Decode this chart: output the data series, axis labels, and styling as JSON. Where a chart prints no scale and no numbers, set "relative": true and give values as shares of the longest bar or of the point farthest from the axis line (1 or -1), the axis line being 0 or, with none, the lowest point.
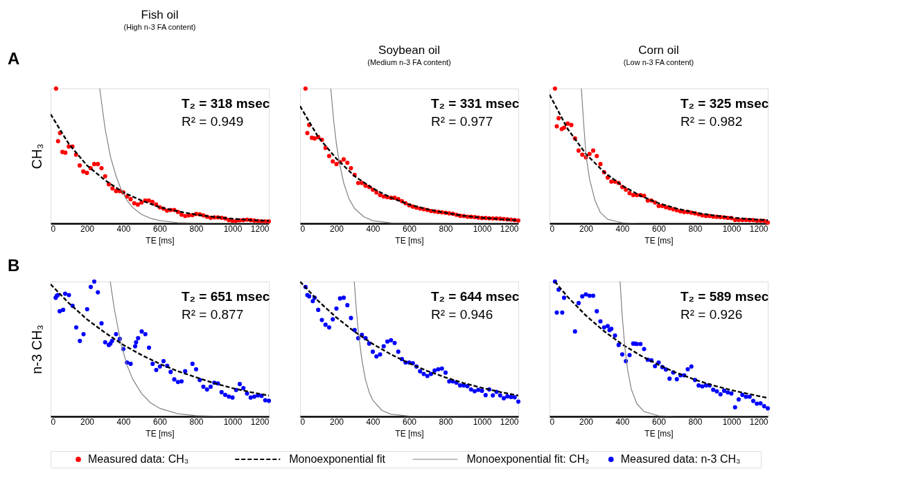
{
  "chart_data": [
    {
      "type": "scatter",
      "title": "Fish oil",
      "subtitle": "(High n-3 FA content)",
      "ylabel": "CH₃",
      "xlabel": "TE [ms]",
      "relative": true,
      "tick_labels": "x",
      "legend": "bottom",
      "xlim": [
        0,
        1200
      ],
      "xticks": [
        0,
        200,
        400,
        600,
        800,
        1000,
        1200
      ],
      "annotations": [
        "T₂ = 318 msec",
        "R² = 0.949",
        "A"
      ],
      "series": [
        {
          "name": "Measured data: CH₃",
          "color": "#ff0000",
          "marker": "circle",
          "x": [
            30,
            41,
            52,
            65,
            81,
            100,
            120,
            140,
            160,
            180,
            200,
            220,
            240,
            260,
            280,
            300,
            320,
            340,
            360,
            380,
            400,
            420,
            440,
            460,
            480,
            500,
            520,
            540,
            560,
            580,
            600,
            620,
            640,
            660,
            680,
            700,
            720,
            740,
            760,
            780,
            800,
            820,
            840,
            860,
            880,
            900,
            920,
            940,
            960,
            980,
            1000,
            1020,
            1040,
            1060,
            1080,
            1100,
            1120,
            1140,
            1160,
            1180,
            1200
          ],
          "values": [
            1.0,
            0.61,
            0.67,
            0.53,
            0.525,
            0.57,
            0.57,
            0.51,
            0.43,
            0.385,
            0.375,
            0.41,
            0.44,
            0.44,
            0.41,
            0.35,
            0.29,
            0.26,
            0.24,
            0.24,
            0.23,
            0.2,
            0.18,
            0.15,
            0.14,
            0.155,
            0.17,
            0.17,
            0.16,
            0.14,
            0.12,
            0.11,
            0.095,
            0.1,
            0.1,
            0.085,
            0.065,
            0.055,
            0.06,
            0.062,
            0.07,
            0.068,
            0.06,
            0.05,
            0.042,
            0.045,
            0.045,
            0.042,
            0.037,
            0.025,
            0.018,
            0.018,
            0.023,
            0.025,
            0.028,
            0.025,
            0.021,
            0.018,
            0.015,
            0.015,
            0.015
          ]
        },
        {
          "name": "Monoexponential fit",
          "type": "line",
          "line_style": "dashed",
          "color": "#000000",
          "x": [
            0,
            100,
            200,
            300,
            400,
            500,
            600,
            700,
            800,
            900,
            1000,
            1100,
            1200
          ],
          "values": [
            0.81,
            0.59,
            0.43,
            0.32,
            0.23,
            0.17,
            0.12,
            0.09,
            0.065,
            0.048,
            0.035,
            0.025,
            0.019
          ]
        },
        {
          "name": "Monoexponential fit: CH₂",
          "type": "line",
          "line_style": "solid",
          "color": "#808080",
          "x": [
            270,
            300,
            330,
            360,
            390,
            420,
            450,
            500,
            550,
            600,
            700,
            800,
            1200
          ],
          "values": [
            1.0,
            0.7,
            0.49,
            0.35,
            0.245,
            0.17,
            0.12,
            0.067,
            0.038,
            0.021,
            0.006,
            0.002,
            0
          ]
        }
      ]
    },
    {
      "type": "scatter",
      "title": "Soybean oil",
      "subtitle": "(Medium n-3 FA content)",
      "xlabel": "TE [ms]",
      "relative": true,
      "tick_labels": "x",
      "legend": "bottom",
      "xlim": [
        0,
        1200
      ],
      "xticks": [
        0,
        200,
        400,
        600,
        800,
        1000,
        1200
      ],
      "annotations": [
        "T₂ = 331 msec",
        "R² = 0.977"
      ],
      "series": [
        {
          "name": "Measured data: CH₃",
          "color": "#ff0000",
          "marker": "circle",
          "x": [
            30,
            40,
            50,
            65,
            80,
            100,
            120,
            140,
            160,
            180,
            200,
            220,
            240,
            260,
            280,
            300,
            320,
            340,
            360,
            380,
            400,
            420,
            440,
            460,
            480,
            500,
            520,
            540,
            560,
            580,
            600,
            620,
            640,
            660,
            680,
            700,
            720,
            740,
            760,
            780,
            800,
            820,
            840,
            860,
            880,
            900,
            920,
            940,
            960,
            980,
            1000,
            1020,
            1040,
            1060,
            1080,
            1100,
            1120,
            1140,
            1160,
            1180,
            1200
          ],
          "values": [
            1.0,
            0.67,
            0.73,
            0.635,
            0.63,
            0.64,
            0.62,
            0.56,
            0.5,
            0.46,
            0.44,
            0.455,
            0.475,
            0.45,
            0.41,
            0.36,
            0.3,
            0.3,
            0.28,
            0.27,
            0.25,
            0.23,
            0.21,
            0.2,
            0.195,
            0.19,
            0.19,
            0.18,
            0.165,
            0.15,
            0.135,
            0.125,
            0.117,
            0.11,
            0.105,
            0.1,
            0.092,
            0.089,
            0.085,
            0.082,
            0.079,
            0.075,
            0.072,
            0.064,
            0.057,
            0.055,
            0.05,
            0.049,
            0.047,
            0.043,
            0.04,
            0.04,
            0.038,
            0.037,
            0.037,
            0.035,
            0.033,
            0.03,
            0.028,
            0.025,
            0.022
          ]
        },
        {
          "name": "Monoexponential fit",
          "type": "line",
          "line_style": "dashed",
          "color": "#000000",
          "x": [
            0,
            100,
            200,
            300,
            400,
            500,
            600,
            700,
            800,
            900,
            1000,
            1100,
            1200
          ],
          "values": [
            0.87,
            0.64,
            0.48,
            0.35,
            0.26,
            0.19,
            0.14,
            0.105,
            0.078,
            0.057,
            0.042,
            0.031,
            0.023
          ]
        },
        {
          "name": "Monoexponential fit: CH₂",
          "type": "line",
          "line_style": "solid",
          "color": "#808080",
          "x": [
            169,
            185,
            200,
            216,
            240,
            270,
            300,
            350,
            400,
            500,
            1200
          ],
          "values": [
            1.0,
            0.76,
            0.59,
            0.45,
            0.3,
            0.18,
            0.11,
            0.05,
            0.02,
            0.004,
            0
          ]
        }
      ]
    },
    {
      "type": "scatter",
      "title": "Corn oil",
      "subtitle": "(Low n-3 FA content)",
      "xlabel": "TE [ms]",
      "relative": true,
      "tick_labels": "x",
      "legend": "bottom",
      "xlim": [
        0,
        1200
      ],
      "xticks": [
        0,
        200,
        400,
        600,
        800,
        1000,
        1200
      ],
      "annotations": [
        "T₂ = 325 msec",
        "R² = 0.982"
      ],
      "series": [
        {
          "name": "Measured data: CH₃",
          "color": "#ff0000",
          "marker": "circle",
          "x": [
            30,
            40,
            50,
            67,
            80,
            100,
            120,
            140,
            160,
            180,
            200,
            220,
            240,
            260,
            280,
            300,
            320,
            340,
            360,
            380,
            400,
            420,
            440,
            460,
            480,
            500,
            520,
            540,
            560,
            580,
            600,
            620,
            640,
            660,
            680,
            700,
            720,
            740,
            760,
            780,
            800,
            820,
            840,
            860,
            880,
            900,
            920,
            940,
            960,
            980,
            1000,
            1020,
            1040,
            1060,
            1080,
            1100,
            1120,
            1140,
            1160,
            1180,
            1200
          ],
          "values": [
            1.0,
            0.72,
            0.78,
            0.7,
            0.71,
            0.74,
            0.73,
            0.63,
            0.54,
            0.51,
            0.49,
            0.515,
            0.54,
            0.5,
            0.44,
            0.38,
            0.34,
            0.31,
            0.31,
            0.3,
            0.27,
            0.25,
            0.225,
            0.21,
            0.21,
            0.21,
            0.205,
            0.17,
            0.17,
            0.155,
            0.13,
            0.13,
            0.12,
            0.113,
            0.105,
            0.098,
            0.09,
            0.085,
            0.085,
            0.08,
            0.075,
            0.068,
            0.06,
            0.055,
            0.055,
            0.05,
            0.049,
            0.047,
            0.045,
            0.041,
            0.04,
            0.026,
            0.026,
            0.026,
            0.026,
            0.025,
            0.025,
            0.02,
            0.02,
            0.019,
            0.006
          ]
        },
        {
          "name": "Monoexponential fit",
          "type": "line",
          "line_style": "dashed",
          "color": "#000000",
          "x": [
            0,
            100,
            200,
            300,
            400,
            500,
            600,
            700,
            800,
            900,
            1000,
            1100,
            1200
          ],
          "values": [
            0.955,
            0.7,
            0.515,
            0.38,
            0.28,
            0.205,
            0.15,
            0.11,
            0.08,
            0.06,
            0.044,
            0.032,
            0.024
          ]
        },
        {
          "name": "Monoexponential fit: CH₂",
          "type": "line",
          "line_style": "solid",
          "color": "#808080",
          "x": [
            175,
            190,
            201,
            220,
            250,
            280,
            320,
            400,
            500,
            1200
          ],
          "values": [
            1.0,
            0.7,
            0.5,
            0.33,
            0.17,
            0.08,
            0.03,
            0.005,
            0,
            0
          ]
        }
      ]
    },
    {
      "type": "scatter",
      "ylabel": "n-3 CH₃",
      "xlabel": "TE [ms]",
      "relative": true,
      "tick_labels": "x",
      "legend": "bottom",
      "xlim": [
        0,
        1200
      ],
      "xticks": [
        0,
        200,
        400,
        600,
        800,
        1000,
        1200
      ],
      "annotations": [
        "T₂ = 651 msec",
        "R² = 0.877",
        "B"
      ],
      "series": [
        {
          "name": "Measured data: n-3 CH₃",
          "color": "#0000ff",
          "marker": "circle",
          "x": [
            28,
            34,
            40,
            50,
            69,
            80,
            101,
            121,
            141,
            161,
            181,
            201,
            221,
            240,
            260,
            280,
            300,
            320,
            329,
            338,
            360,
            380,
            400,
            420,
            440,
            465,
            470,
            481,
            501,
            521,
            541,
            561,
            581,
            601,
            621,
            641,
            660,
            680,
            700,
            720,
            740,
            780,
            800,
            820,
            840,
            860,
            880,
            900,
            920,
            940,
            960,
            980,
            1000,
            1020,
            1040,
            1060,
            1080,
            1100,
            1120,
            1140,
            1160,
            1180,
            1200
          ],
          "values": [
            0.88,
            0.895,
            0.9,
            0.78,
            0.79,
            0.91,
            0.9,
            0.82,
            0.66,
            0.56,
            0.61,
            0.795,
            0.96,
            1.0,
            0.92,
            0.69,
            0.55,
            0.53,
            0.54,
            0.56,
            0.61,
            0.575,
            0.5,
            0.4,
            0.39,
            0.52,
            0.55,
            0.58,
            0.63,
            0.61,
            0.51,
            0.39,
            0.345,
            0.37,
            0.41,
            0.375,
            0.33,
            0.275,
            0.255,
            0.26,
            0.335,
            0.39,
            0.35,
            0.27,
            0.22,
            0.2,
            0.22,
            0.25,
            0.245,
            0.18,
            0.16,
            0.147,
            0.14,
            0.196,
            0.24,
            0.21,
            0.17,
            0.14,
            0.147,
            0.156,
            0.153,
            0.12,
            0.116
          ]
        },
        {
          "name": "Monoexponential fit",
          "type": "line",
          "line_style": "dashed",
          "color": "#000000",
          "x": [
            0,
            100,
            200,
            300,
            400,
            500,
            600,
            700,
            800,
            900,
            1000,
            1100,
            1200
          ],
          "values": [
            0.98,
            0.84,
            0.72,
            0.62,
            0.53,
            0.455,
            0.39,
            0.335,
            0.29,
            0.246,
            0.21,
            0.18,
            0.155
          ]
        },
        {
          "name": "Monoexponential fit: CH₂",
          "type": "line",
          "line_style": "solid",
          "color": "#808080",
          "x": [
            328,
            350,
            388,
            420,
            450,
            500,
            550,
            600,
            700,
            800,
            900,
            1200
          ],
          "values": [
            1.0,
            0.8,
            0.535,
            0.38,
            0.28,
            0.17,
            0.1,
            0.06,
            0.02,
            0.006,
            0.002,
            0
          ]
        }
      ]
    },
    {
      "type": "scatter",
      "xlabel": "TE [ms]",
      "relative": true,
      "tick_labels": "x",
      "legend": "bottom",
      "xlim": [
        0,
        1200
      ],
      "xticks": [
        0,
        200,
        400,
        600,
        800,
        1000,
        1200
      ],
      "annotations": [
        "T₂ = 644 msec",
        "R² = 0.946"
      ],
      "series": [
        {
          "name": "Measured data: n-3 CH₃",
          "color": "#0000ff",
          "marker": "circle",
          "x": [
            30,
            40,
            50,
            70,
            80,
            100,
            120,
            140,
            160,
            180,
            200,
            220,
            240,
            260,
            280,
            300,
            320,
            340,
            360,
            380,
            400,
            420,
            440,
            460,
            480,
            500,
            520,
            540,
            560,
            580,
            600,
            620,
            640,
            660,
            680,
            700,
            720,
            740,
            760,
            780,
            800,
            820,
            840,
            860,
            880,
            900,
            920,
            940,
            960,
            980,
            1000,
            1020,
            1040,
            1060,
            1080,
            1100,
            1120,
            1140,
            1160,
            1180,
            1200
          ],
          "values": [
            0.96,
            0.9,
            0.89,
            0.855,
            0.88,
            0.79,
            0.715,
            0.68,
            0.66,
            0.72,
            0.8,
            0.875,
            0.88,
            0.825,
            0.73,
            0.64,
            0.58,
            0.605,
            0.58,
            0.54,
            0.48,
            0.445,
            0.46,
            0.52,
            0.555,
            0.565,
            0.545,
            0.48,
            0.425,
            0.4,
            0.4,
            0.395,
            0.37,
            0.335,
            0.315,
            0.3,
            0.315,
            0.34,
            0.35,
            0.355,
            0.325,
            0.26,
            0.26,
            0.25,
            0.23,
            0.23,
            0.225,
            0.2,
            0.187,
            0.197,
            0.19,
            0.158,
            0.2,
            0.156,
            0.182,
            0.156,
            0.135,
            0.149,
            0.144,
            0.142,
            0.11
          ]
        },
        {
          "name": "Monoexponential fit",
          "type": "line",
          "line_style": "dashed",
          "color": "#000000",
          "x": [
            0,
            100,
            200,
            300,
            400,
            500,
            600,
            700,
            800,
            900,
            1000,
            1100,
            1200
          ],
          "values": [
            1.0,
            0.856,
            0.733,
            0.628,
            0.537,
            0.46,
            0.394,
            0.337,
            0.289,
            0.247,
            0.212,
            0.181,
            0.155
          ]
        },
        {
          "name": "Monoexponential fit: CH₂",
          "type": "line",
          "line_style": "solid",
          "color": "#808080",
          "x": [
            298,
            310,
            321,
            340,
            360,
            380,
            400,
            450,
            500,
            600,
            1200
          ],
          "values": [
            1.0,
            0.78,
            0.62,
            0.42,
            0.27,
            0.18,
            0.12,
            0.045,
            0.016,
            0.003,
            0
          ]
        }
      ]
    },
    {
      "type": "scatter",
      "xlabel": "TE [ms]",
      "relative": true,
      "tick_labels": "x",
      "legend": "bottom",
      "xlim": [
        0,
        1200
      ],
      "xticks": [
        0,
        200,
        400,
        600,
        800,
        1000,
        1200
      ],
      "annotations": [
        "T₂ = 589 msec",
        "R² = 0.926"
      ],
      "series": [
        {
          "name": "Measured data: n-3 CH₃",
          "color": "#0000ff",
          "marker": "circle",
          "x": [
            30,
            40,
            50,
            70,
            80,
            140,
            160,
            180,
            200,
            220,
            240,
            260,
            280,
            300,
            320,
            330,
            340,
            360,
            380,
            400,
            420,
            440,
            460,
            470,
            480,
            500,
            520,
            540,
            560,
            580,
            600,
            620,
            640,
            660,
            680,
            700,
            720,
            740,
            760,
            780,
            800,
            820,
            840,
            860,
            880,
            900,
            920,
            940,
            960,
            980,
            1000,
            1020,
            1040,
            1060,
            1080,
            1100,
            1120,
            1140,
            1160,
            1180,
            1200
          ],
          "values": [
            1.0,
            0.77,
            0.94,
            0.77,
            0.88,
            0.63,
            0.84,
            0.89,
            0.905,
            0.895,
            0.895,
            0.78,
            0.705,
            0.66,
            0.67,
            0.64,
            0.65,
            0.6,
            0.53,
            0.46,
            0.41,
            0.455,
            0.54,
            0.54,
            0.537,
            0.537,
            0.5,
            0.42,
            0.416,
            0.373,
            0.4,
            0.366,
            0.348,
            0.28,
            0.326,
            0.276,
            0.305,
            0.305,
            0.35,
            0.37,
            0.27,
            0.23,
            0.223,
            0.23,
            0.23,
            0.198,
            0.186,
            0.164,
            0.19,
            0.178,
            0.17,
            0.068,
            0.126,
            0.16,
            0.146,
            0.146,
            0.115,
            0.095,
            0.097,
            0.076,
            0.06
          ]
        },
        {
          "name": "Monoexponential fit",
          "type": "line",
          "line_style": "dashed",
          "color": "#000000",
          "x": [
            29,
            100,
            200,
            300,
            400,
            500,
            600,
            700,
            800,
            900,
            1000,
            1100,
            1200
          ],
          "values": [
            1.0,
            0.886,
            0.748,
            0.632,
            0.534,
            0.452,
            0.382,
            0.322,
            0.272,
            0.23,
            0.195,
            0.165,
            0.137
          ]
        },
        {
          "name": "Monoexponential fit: CH₂",
          "type": "line",
          "line_style": "solid",
          "color": "#808080",
          "x": [
            388,
            400,
            415,
            430,
            450,
            480,
            520,
            600,
            700,
            1200
          ],
          "values": [
            1.0,
            0.74,
            0.5,
            0.34,
            0.2,
            0.095,
            0.035,
            0.005,
            0,
            0
          ]
        }
      ]
    }
  ]
}
